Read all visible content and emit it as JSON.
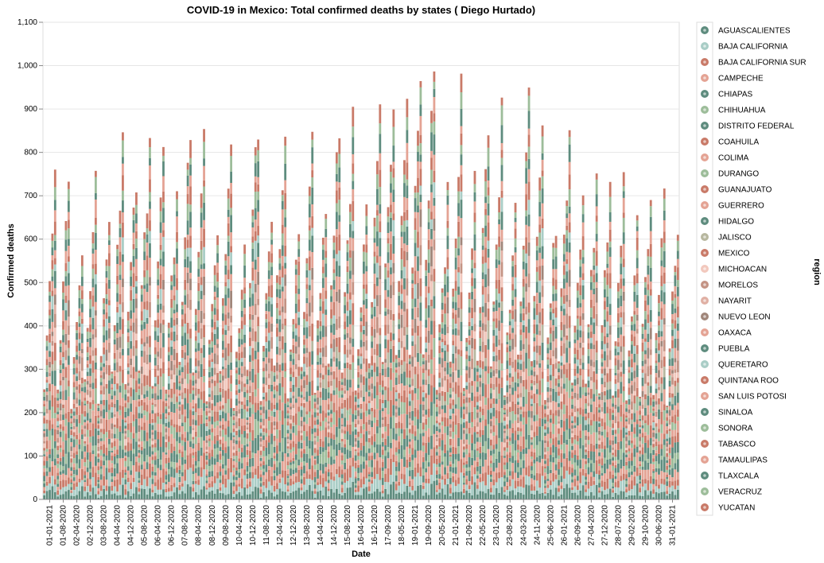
{
  "chart_data": {
    "type": "bar",
    "stacked": true,
    "title": "COVID-19 in Mexico: Total confirmed deaths by states ( Diego Hurtado)",
    "xlabel": "Date",
    "ylabel": "Confirmed deaths",
    "ylim": [
      0,
      1100
    ],
    "yticks": [
      0,
      100,
      200,
      300,
      400,
      500,
      600,
      700,
      800,
      900,
      1000,
      1100
    ],
    "ytick_labels": [
      "0",
      "100",
      "200",
      "300",
      "400",
      "500",
      "600",
      "700",
      "800",
      "900",
      "1,000",
      "1,100"
    ],
    "grid": true,
    "legend_title": "region",
    "legend_position": "right",
    "categories": [
      "01-01-2021",
      "01-08-2020",
      "02-04-2020",
      "02-12-2020",
      "03-08-2020",
      "04-04-2020",
      "04-12-2020",
      "05-08-2020",
      "06-04-2020",
      "06-12-2020",
      "07-08-2020",
      "08-04-2020",
      "08-12-2020",
      "09-08-2020",
      "10-04-2020",
      "10-12-2020",
      "11-08-2020",
      "12-04-2020",
      "12-12-2020",
      "13-08-2020",
      "14-04-2020",
      "14-12-2020",
      "15-08-2020",
      "16-04-2020",
      "16-12-2020",
      "17-09-2020",
      "18-05-2020",
      "19-01-2021",
      "19-09-2020",
      "20-05-2020",
      "21-01-2021",
      "21-09-2020",
      "22-05-2020",
      "23-01-2020",
      "23-08-2020",
      "24-03-2020",
      "24-11-2020",
      "25-06-2020",
      "26-01-2021",
      "26-09-2020",
      "27-04-2020",
      "27-12-2020",
      "28-07-2020",
      "29-02-2020",
      "29-10-2020",
      "30-06-2020",
      "31-01-2021"
    ],
    "totals": [
      785,
      778,
      635,
      797,
      690,
      858,
      823,
      902,
      828,
      750,
      940,
      880,
      706,
      909,
      650,
      970,
      688,
      948,
      698,
      920,
      770,
      952,
      930,
      738,
      958,
      1014,
      1046,
      1066,
      1083,
      740,
      995,
      760,
      944,
      930,
      725,
      965,
      976,
      714,
      922,
      780,
      775,
      765,
      761,
      690,
      780,
      745,
      685
    ],
    "series": [
      {
        "name": "AGUASCALIENTES",
        "color": "#5e8c7e"
      },
      {
        "name": "BAJA CALIFORNIA",
        "color": "#a9cdc6"
      },
      {
        "name": "BAJA CALIFORNIA SUR",
        "color": "#c97a68"
      },
      {
        "name": "CAMPECHE",
        "color": "#e4a394"
      },
      {
        "name": "CHIAPAS",
        "color": "#5e8c7e"
      },
      {
        "name": "CHIHUAHUA",
        "color": "#9dbd9a"
      },
      {
        "name": "DISTRITO FEDERAL",
        "color": "#5e8c7e"
      },
      {
        "name": "COAHUILA",
        "color": "#c97a68"
      },
      {
        "name": "COLIMA",
        "color": "#e4a394"
      },
      {
        "name": "DURANGO",
        "color": "#9dbd9a"
      },
      {
        "name": "GUANAJUATO",
        "color": "#c97a68"
      },
      {
        "name": "GUERRERO",
        "color": "#e4a394"
      },
      {
        "name": "HIDALGO",
        "color": "#5e8c7e"
      },
      {
        "name": "JALISCO",
        "color": "#b7b79f"
      },
      {
        "name": "MEXICO",
        "color": "#c97a68"
      },
      {
        "name": "MICHOACAN",
        "color": "#f2c8bd"
      },
      {
        "name": "MORELOS",
        "color": "#c49384"
      },
      {
        "name": "NAYARIT",
        "color": "#e0b0a4"
      },
      {
        "name": "NUEVO LEON",
        "color": "#a0867a"
      },
      {
        "name": "OAXACA",
        "color": "#e4a394"
      },
      {
        "name": "PUEBLA",
        "color": "#5e8c7e"
      },
      {
        "name": "QUERETARO",
        "color": "#a9cdc6"
      },
      {
        "name": "QUINTANA ROO",
        "color": "#c97a68"
      },
      {
        "name": "SAN LUIS POTOSI",
        "color": "#e4a394"
      },
      {
        "name": "SINALOA",
        "color": "#5e8c7e"
      },
      {
        "name": "SONORA",
        "color": "#9dbd9a"
      },
      {
        "name": "TABASCO",
        "color": "#c97a68"
      },
      {
        "name": "TAMAULIPAS",
        "color": "#e4a394"
      },
      {
        "name": "TLAXCALA",
        "color": "#5e8c7e"
      },
      {
        "name": "VERACRUZ",
        "color": "#9dbd9a"
      },
      {
        "name": "YUCATAN",
        "color": "#c97a68"
      }
    ]
  }
}
